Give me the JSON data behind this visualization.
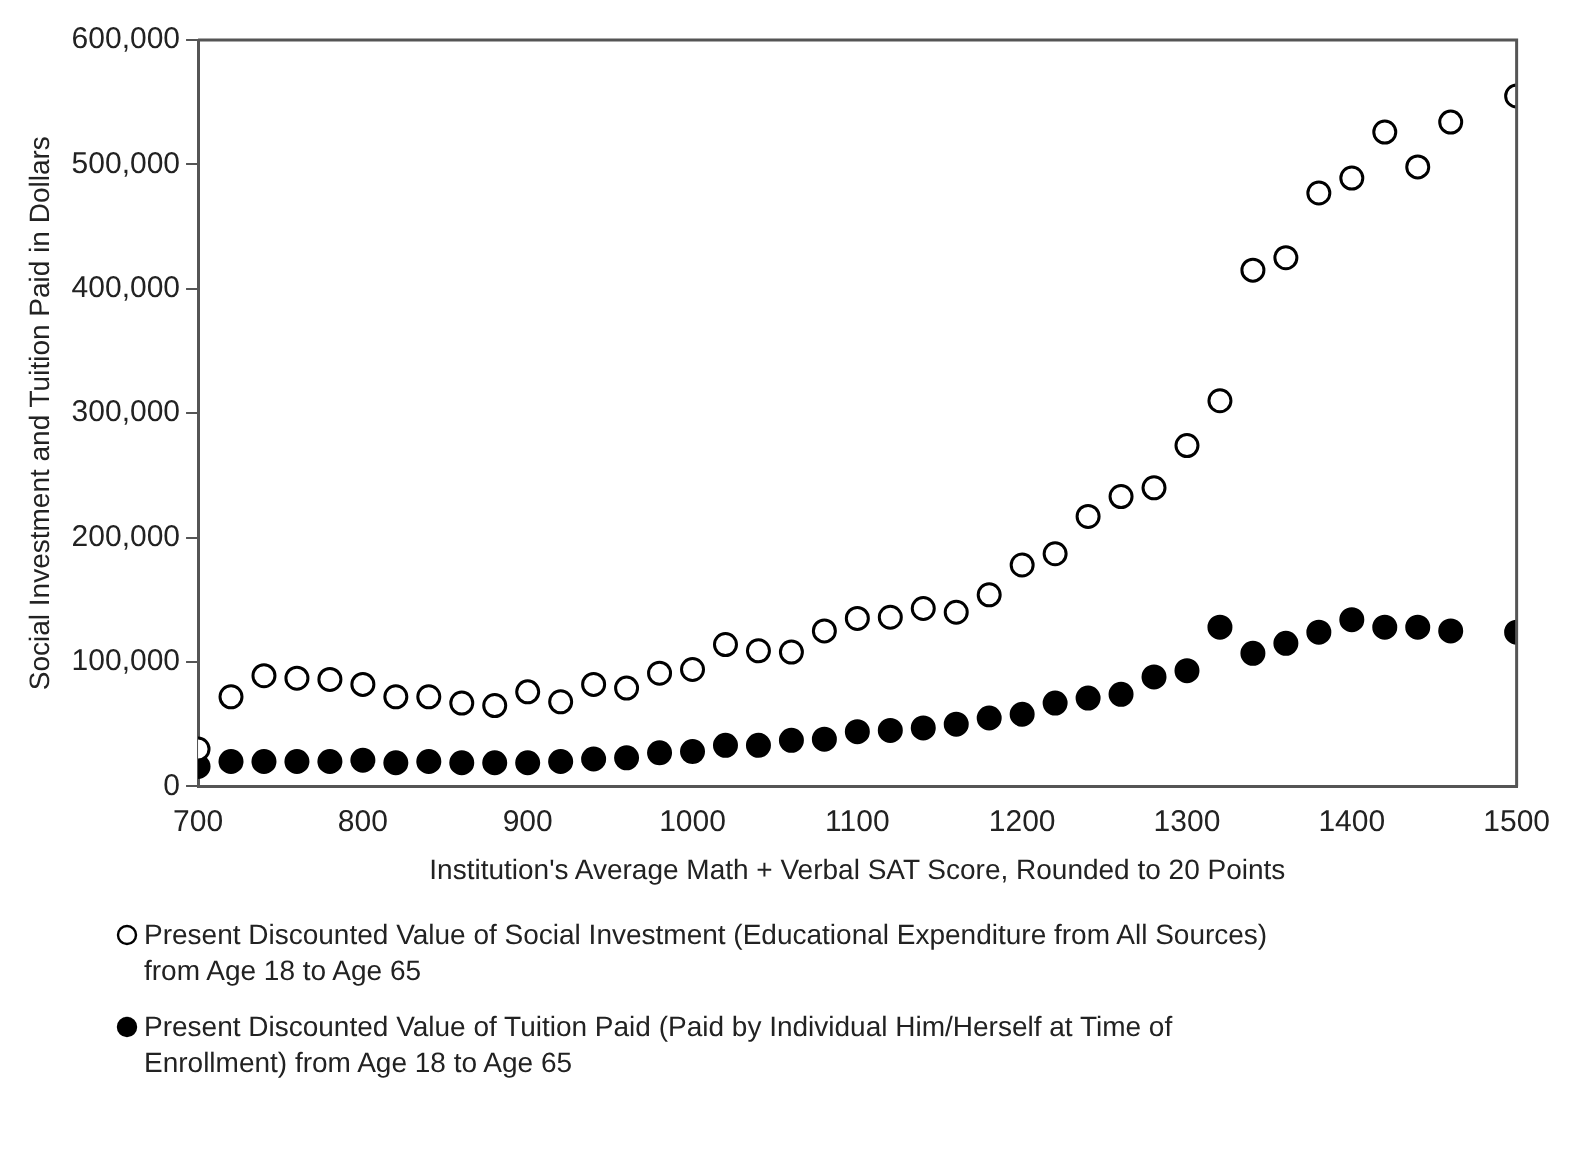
{
  "chart_data": {
    "type": "scatter",
    "xlabel": "Institution's Average Math + Verbal SAT Score, Rounded to 20 Points",
    "ylabel": "Social Investment and Tuition Paid in Dollars",
    "xlim": [
      700,
      1500
    ],
    "xticks": [
      700,
      800,
      900,
      1000,
      1100,
      1200,
      1300,
      1400,
      1500
    ],
    "ylim": [
      0,
      600000
    ],
    "yticks": [
      {
        "value": 0,
        "label": "0"
      },
      {
        "value": 100000,
        "label": "100,000"
      },
      {
        "value": 200000,
        "label": "200,000"
      },
      {
        "value": 300000,
        "label": "300,000"
      },
      {
        "value": 400000,
        "label": "400,000"
      },
      {
        "value": 500000,
        "label": "500,000"
      },
      {
        "value": 600000,
        "label": "600,000"
      }
    ],
    "grid": false,
    "legend": "bottom",
    "marker": "circle",
    "x": [
      700,
      720,
      740,
      760,
      780,
      800,
      820,
      840,
      860,
      880,
      900,
      920,
      940,
      960,
      980,
      1000,
      1020,
      1040,
      1060,
      1080,
      1100,
      1120,
      1140,
      1160,
      1180,
      1200,
      1220,
      1240,
      1260,
      1280,
      1300,
      1320,
      1340,
      1360,
      1380,
      1400,
      1420,
      1440,
      1460,
      1500
    ],
    "series": [
      {
        "name": "Present Discounted Value of Social Investment (Educational Expenditure from All Sources) from Age 18 to Age 65",
        "color": "#ffffff",
        "values": [
          30000,
          72000,
          89000,
          87000,
          86000,
          82000,
          72000,
          72000,
          67000,
          65000,
          76000,
          68000,
          82000,
          79000,
          91000,
          94000,
          114000,
          109000,
          108000,
          125000,
          135000,
          136000,
          143000,
          140000,
          154000,
          178000,
          187000,
          217000,
          233000,
          240000,
          274000,
          310000,
          415000,
          425000,
          477000,
          489000,
          526000,
          498000,
          534000,
          555000
        ]
      },
      {
        "name": "Present Discounted Value of Tuition Paid (Paid by Individual Him/Herself at Time of Enrollment) from Age 18 to Age 65",
        "color": "#000000",
        "values": [
          16000,
          20000,
          20000,
          20000,
          20000,
          21000,
          19000,
          20000,
          19000,
          19000,
          19000,
          20000,
          22000,
          23000,
          27000,
          28000,
          33000,
          33000,
          37000,
          38000,
          44000,
          45000,
          47000,
          50000,
          55000,
          58000,
          67000,
          71000,
          74000,
          88000,
          93000,
          128000,
          107000,
          115000,
          124000,
          134000,
          128000,
          128000,
          125000,
          124000
        ]
      }
    ]
  }
}
